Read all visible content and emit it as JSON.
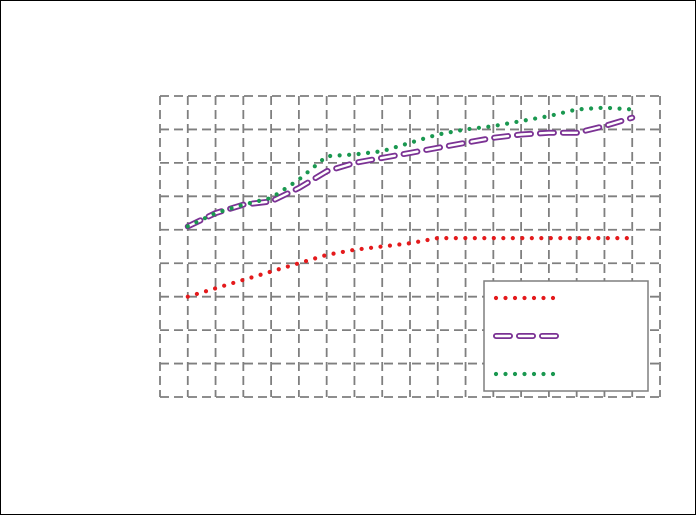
{
  "chart_data": {
    "type": "line",
    "title": "",
    "xlabel": "",
    "ylabel": "",
    "x": [
      1,
      2,
      3,
      4,
      5,
      6,
      7,
      8,
      9,
      10,
      11,
      12,
      13,
      14,
      15,
      16,
      17
    ],
    "xlim": [
      0,
      18
    ],
    "ylim": [
      0,
      9
    ],
    "grid": true,
    "grid_style": "dashed",
    "legend_position": "lower-right",
    "series": [
      {
        "values": [
          3.0,
          3.25,
          3.5,
          3.75,
          4.0,
          4.25,
          4.4,
          4.5,
          4.6,
          4.75,
          4.75,
          4.75,
          4.75,
          4.75,
          4.75,
          4.75,
          4.75
        ],
        "color": "#e41a1c",
        "style": "dotted"
      },
      {
        "values": [
          5.1,
          5.5,
          5.75,
          5.85,
          6.25,
          6.75,
          7.0,
          7.15,
          7.3,
          7.45,
          7.6,
          7.75,
          7.85,
          7.9,
          7.9,
          8.1,
          8.35
        ],
        "color": "#7b3294",
        "style": "dashed-outline"
      },
      {
        "values": [
          5.1,
          5.5,
          5.75,
          5.95,
          6.5,
          7.2,
          7.25,
          7.35,
          7.6,
          7.85,
          8.0,
          8.1,
          8.25,
          8.4,
          8.6,
          8.65,
          8.6
        ],
        "color": "#1a9850",
        "style": "dotted"
      }
    ]
  }
}
